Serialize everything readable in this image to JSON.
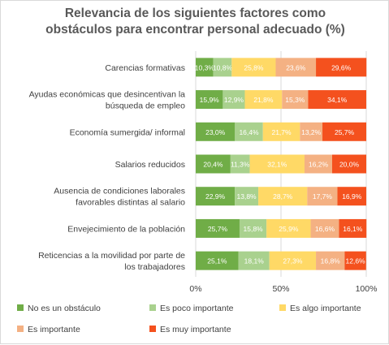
{
  "chart_data": {
    "type": "bar",
    "orientation": "horizontal",
    "stacked": "percent",
    "title_lines": [
      "Relevancia de los siguientes factores como",
      "obstáculos para encontrar personal adecuado (%)"
    ],
    "categories": [
      {
        "lines": [
          "Carencias formativas"
        ]
      },
      {
        "lines": [
          "Ayudas económicas que desincentivan la",
          "búsqueda de empleo"
        ]
      },
      {
        "lines": [
          "Economía sumergida/ informal"
        ]
      },
      {
        "lines": [
          "Salarios reducidos"
        ]
      },
      {
        "lines": [
          "Ausencia de condiciones laborales",
          "favorables distintas al salario"
        ]
      },
      {
        "lines": [
          "Envejecimiento de la población"
        ]
      },
      {
        "lines": [
          "Reticencias a la movilidad por parte de",
          "los trabajadores"
        ]
      }
    ],
    "series": [
      {
        "name": "No es un obstáculo",
        "color": "#70ad47",
        "values": [
          10.3,
          15.9,
          23.0,
          20.4,
          22.9,
          25.7,
          25.1
        ],
        "labels": [
          "10,3%",
          "15,9%",
          "23,0%",
          "20,4%",
          "22,9%",
          "25,7%",
          "25,1%"
        ]
      },
      {
        "name": "Es poco importante",
        "color": "#a9d18e",
        "values": [
          10.8,
          12.9,
          16.4,
          11.3,
          13.8,
          15.8,
          18.1
        ],
        "labels": [
          "10,8%",
          "12,9%",
          "16,4%",
          "11,3%",
          "13,8%",
          "15,8%",
          "18,1%"
        ]
      },
      {
        "name": "Es algo importante",
        "color": "#ffd966",
        "values": [
          25.8,
          21.8,
          21.7,
          32.1,
          28.7,
          25.9,
          27.3
        ],
        "labels": [
          "25,8%",
          "21,8%",
          "21,7%",
          "32,1%",
          "28,7%",
          "25,9%",
          "27,3%"
        ]
      },
      {
        "name": "Es importante",
        "color": "#f4b183",
        "values": [
          23.6,
          15.3,
          13.2,
          16.2,
          17.7,
          16.6,
          16.8
        ],
        "labels": [
          "23,6%",
          "15,3%",
          "13,2%",
          "16,2%",
          "17,7%",
          "16,6%",
          "16,8%"
        ]
      },
      {
        "name": "Es muy importante",
        "color": "#f4511e",
        "values": [
          29.6,
          34.1,
          25.7,
          20.0,
          16.9,
          16.1,
          12.6
        ],
        "labels": [
          "29,6%",
          "34,1%",
          "25,7%",
          "20,0%",
          "16,9%",
          "16,1%",
          "12,6%"
        ]
      }
    ],
    "x_ticks": [
      0,
      50,
      100
    ],
    "x_tick_labels": [
      "0%",
      "50%",
      "100%"
    ],
    "xlim": [
      0,
      100
    ],
    "grid": true,
    "legend": "bottom"
  }
}
